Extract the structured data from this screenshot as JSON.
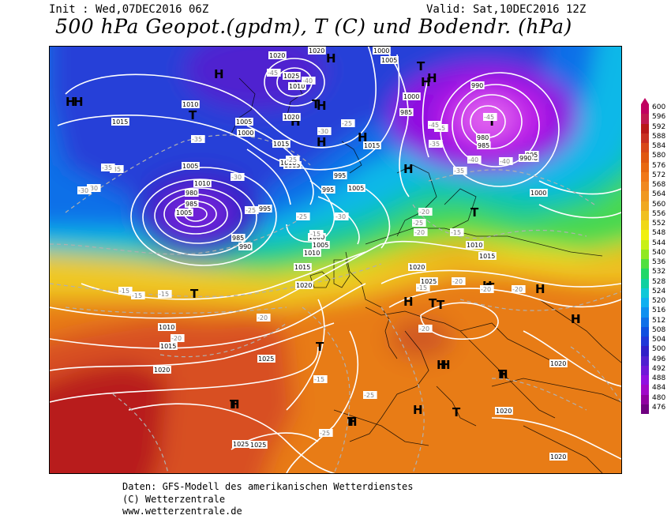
{
  "header": {
    "init": "Init : Wed,07DEC2016 06Z",
    "valid": "Valid: Sat,10DEC2016 12Z",
    "title": "500 hPa Geopot.(gpdm), T (C) und Bodendr. (hPa)"
  },
  "footer": {
    "line1": "Daten: GFS-Modell des amerikanischen Wetterdienstes",
    "line2": "(C) Wetterzentrale",
    "line3": "www.wetterzentrale.de"
  },
  "legend": {
    "values": [
      "600",
      "596",
      "592",
      "588",
      "584",
      "580",
      "576",
      "572",
      "568",
      "564",
      "560",
      "556",
      "552",
      "548",
      "544",
      "540",
      "536",
      "532",
      "528",
      "524",
      "520",
      "516",
      "512",
      "508",
      "504",
      "500",
      "496",
      "492",
      "488",
      "484",
      "480",
      "476"
    ],
    "colors": [
      "#c00060",
      "#c01850",
      "#b81818",
      "#c83020",
      "#d84818",
      "#e05810",
      "#e86810",
      "#f07818",
      "#f08820",
      "#f09820",
      "#f0a820",
      "#f0c020",
      "#f0d818",
      "#f0f010",
      "#c8f018",
      "#90e820",
      "#50e040",
      "#20d868",
      "#10d0a0",
      "#10c8d8",
      "#10b0f0",
      "#1090f0",
      "#1070e8",
      "#1050e0",
      "#2038d8",
      "#3020c8",
      "#5020d0",
      "#7018d8",
      "#9010e0",
      "#a008c8",
      "#9000a0",
      "#700080"
    ]
  },
  "map": {
    "pressure_labels": [
      "1020",
      "1020",
      "1000",
      "1005",
      "1025",
      "1010",
      "990",
      "1010",
      "1015",
      "1005",
      "1000",
      "1020",
      "985",
      "1000",
      "980",
      "1015",
      "1015",
      "995",
      "1015",
      "1010",
      "990",
      "1010",
      "1005",
      "995",
      "985",
      "1005",
      "980",
      "985",
      "995",
      "990",
      "985",
      "990",
      "995",
      "1000",
      "1005",
      "1000",
      "1005",
      "1010",
      "1010",
      "1015",
      "1015",
      "1020",
      "1020",
      "1025",
      "1010",
      "1015",
      "1020",
      "1025",
      "1020",
      "1025",
      "1020",
      "1025",
      "1020"
    ],
    "temp_labels": [
      "-45",
      "-40",
      "-35",
      "-30",
      "-45",
      "-35",
      "-45",
      "-45",
      "-35",
      "-40",
      "-40",
      "-30",
      "-35",
      "-25",
      "-25",
      "-35",
      "-30",
      "-30",
      "-25",
      "-25",
      "-30",
      "-20",
      "-25",
      "-20",
      "-15",
      "-15",
      "-20",
      "-15",
      "-20",
      "-20",
      "-15",
      "-15",
      "-15",
      "-20",
      "-20",
      "-15",
      "-25",
      "-20",
      "-25"
    ],
    "centers": [
      "H",
      "H",
      "H",
      "H",
      "T",
      "H",
      "H",
      "T",
      "T",
      "H",
      "H",
      "H",
      "H",
      "T",
      "H",
      "T",
      "T",
      "T",
      "H",
      "T",
      "T",
      "H",
      "T",
      "H",
      "T",
      "H",
      "H",
      "H",
      "H",
      "T",
      "H",
      "T",
      "H",
      "T",
      "T",
      "H",
      "H",
      "T"
    ]
  }
}
